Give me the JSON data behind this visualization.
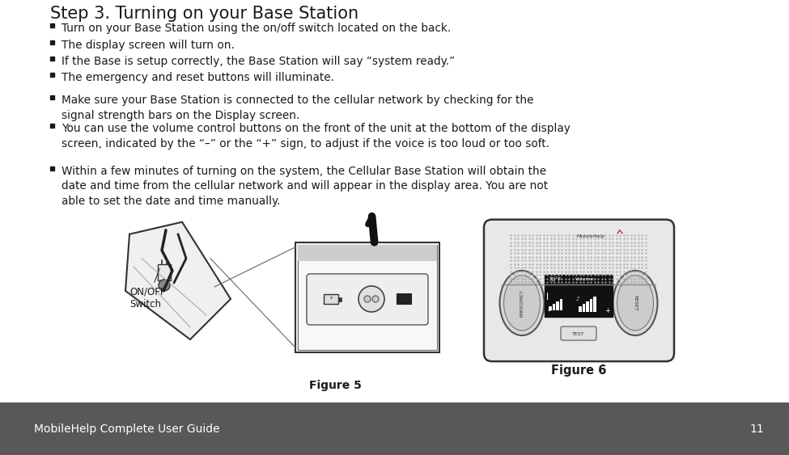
{
  "title": "Step 3. Turning on your Base Station",
  "bullets": [
    "Turn on your Base Station using the on/off switch located on the back.",
    "The display screen will turn on.",
    "If the Base is setup correctly, the Base Station will say “system ready.”",
    "The emergency and reset buttons will illuminate.",
    "Make sure your Base Station is connected to the cellular network by checking for the\nsignal strength bars on the Display screen.",
    "You can use the volume control buttons on the front of the unit at the bottom of the display\nscreen, indicated by the “–” or the “+” sign, to adjust if the voice is too loud or too soft.",
    "Within a few minutes of turning on the system, the Cellular Base Station will obtain the\ndate and time from the cellular network and will appear in the display area. You are not\nable to set the date and time manually."
  ],
  "footer_text": "MobileHelp Complete User Guide",
  "page_number": "11",
  "footer_bg": "#585858",
  "footer_text_color": "#ffffff",
  "bg_color": "#ffffff",
  "title_font_size": 15,
  "bullet_font_size": 9.8,
  "figure5_label": "Figure 5",
  "figure6_label": "Figure 6",
  "onoff_label": "ON/OFF\nSwitch",
  "text_color": "#1a1a1a"
}
